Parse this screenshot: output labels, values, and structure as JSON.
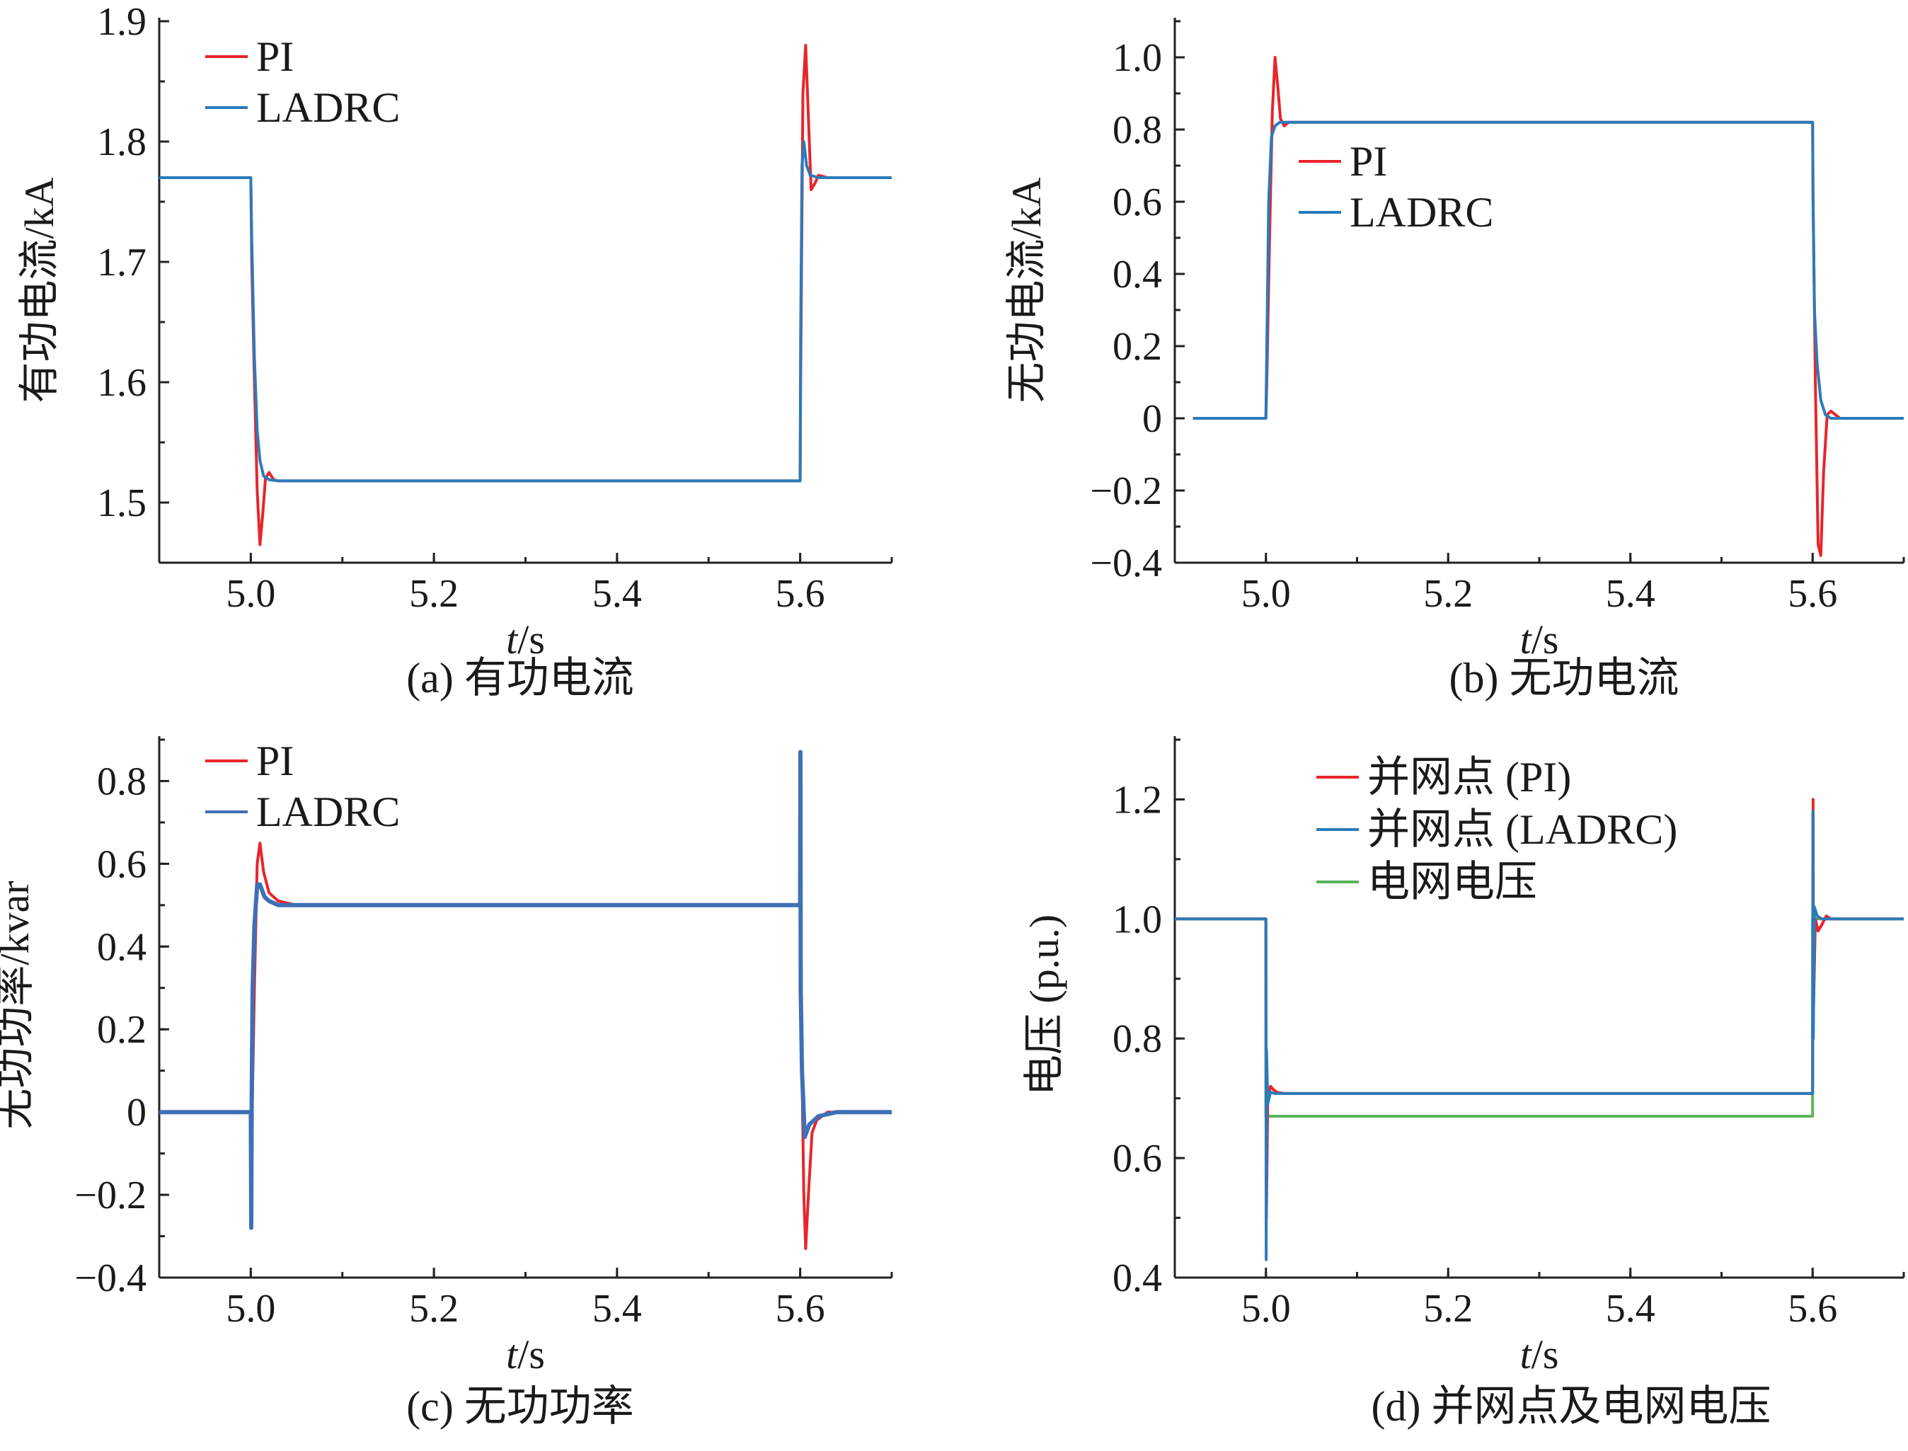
{
  "chart_data": [
    {
      "type": "line",
      "panel": "a",
      "caption": "(a) 有功电流",
      "ylabel": "有功电流/kA",
      "xlabel_t": "t",
      "xlabel_unit": "/s",
      "xlim": [
        4.9,
        5.7
      ],
      "ylim": [
        1.45,
        1.9
      ],
      "xticks": [
        5.0,
        5.2,
        5.4,
        5.6
      ],
      "xtick_labels": [
        "5.0",
        "5.2",
        "5.4",
        "5.6"
      ],
      "yticks": [
        1.5,
        1.6,
        1.7,
        1.8,
        1.9
      ],
      "ytick_labels": [
        "1.5",
        "1.6",
        "1.7",
        "1.8",
        "1.9"
      ],
      "legend_position": "top-left",
      "series": [
        {
          "name": "PI",
          "color": "#e8252b",
          "x": [
            4.9,
            5.0,
            5.001,
            5.004,
            5.007,
            5.01,
            5.013,
            5.016,
            5.02,
            5.025,
            5.03,
            5.6,
            5.6005,
            5.603,
            5.606,
            5.609,
            5.612,
            5.616,
            5.62,
            5.63,
            5.7
          ],
          "y": [
            1.77,
            1.77,
            1.7,
            1.6,
            1.51,
            1.465,
            1.49,
            1.52,
            1.525,
            1.519,
            1.518,
            1.518,
            1.6,
            1.84,
            1.88,
            1.82,
            1.76,
            1.765,
            1.772,
            1.77,
            1.77
          ]
        },
        {
          "name": "LADRC",
          "color": "#2b7bb9",
          "x": [
            4.9,
            5.0,
            5.001,
            5.004,
            5.007,
            5.01,
            5.014,
            5.02,
            5.03,
            5.6,
            5.6005,
            5.602,
            5.604,
            5.607,
            5.611,
            5.62,
            5.7
          ],
          "y": [
            1.77,
            1.77,
            1.72,
            1.62,
            1.56,
            1.535,
            1.522,
            1.519,
            1.518,
            1.518,
            1.64,
            1.78,
            1.8,
            1.78,
            1.772,
            1.77,
            1.77
          ]
        }
      ]
    },
    {
      "type": "line",
      "panel": "b",
      "caption": "(b) 无功电流",
      "ylabel": "无功电流/kA",
      "xlabel_t": "t",
      "xlabel_unit": "/s",
      "xlim": [
        4.9,
        5.7
      ],
      "ylim": [
        -0.4,
        1.1
      ],
      "xticks": [
        5.0,
        5.2,
        5.4,
        5.6
      ],
      "xtick_labels": [
        "5.0",
        "5.2",
        "5.4",
        "5.6"
      ],
      "yticks": [
        -0.4,
        -0.2,
        0,
        0.2,
        0.4,
        0.6,
        0.8,
        1.0
      ],
      "ytick_labels": [
        "−0.4",
        "−0.2",
        "0",
        "0.2",
        "0.4",
        "0.6",
        "0.8",
        "1.0"
      ],
      "legend_position": "upper-left",
      "series": [
        {
          "name": "PI",
          "color": "#e8252b",
          "x": [
            4.92,
            5.0,
            5.001,
            5.004,
            5.007,
            5.01,
            5.013,
            5.016,
            5.02,
            5.025,
            5.03,
            5.6,
            5.6005,
            5.603,
            5.606,
            5.609,
            5.612,
            5.616,
            5.62,
            5.63,
            5.7
          ],
          "y": [
            0,
            0,
            0.1,
            0.5,
            0.85,
            1.0,
            0.92,
            0.83,
            0.81,
            0.82,
            0.82,
            0.82,
            0.6,
            0.1,
            -0.35,
            -0.38,
            -0.15,
            0.01,
            0.02,
            0.0,
            0.0
          ]
        },
        {
          "name": "LADRC",
          "color": "#2b7bb9",
          "x": [
            4.92,
            5.0,
            5.001,
            5.003,
            5.006,
            5.01,
            5.015,
            5.02,
            5.6,
            5.6005,
            5.602,
            5.605,
            5.609,
            5.614,
            5.62,
            5.7
          ],
          "y": [
            0,
            0,
            0.2,
            0.6,
            0.78,
            0.81,
            0.82,
            0.82,
            0.82,
            0.6,
            0.3,
            0.15,
            0.05,
            0.01,
            0.0,
            0.0
          ]
        }
      ]
    },
    {
      "type": "line",
      "panel": "c",
      "caption": "(c) 无功功率",
      "ylabel": "无功功率/kvar",
      "xlabel_t": "t",
      "xlabel_unit": "/s",
      "xlim": [
        4.9,
        5.7
      ],
      "ylim": [
        -0.4,
        0.9
      ],
      "xticks": [
        5.0,
        5.2,
        5.4,
        5.6
      ],
      "xtick_labels": [
        "5.0",
        "5.2",
        "5.4",
        "5.6"
      ],
      "yticks": [
        -0.4,
        -0.2,
        0,
        0.2,
        0.4,
        0.6,
        0.8
      ],
      "ytick_labels": [
        "−0.4",
        "−0.2",
        "0",
        "0.2",
        "0.4",
        "0.6",
        "0.8"
      ],
      "legend_position": "top-left",
      "series": [
        {
          "name": "PI",
          "color": "#e8252b",
          "x": [
            4.9,
            5.0,
            5.001,
            5.004,
            5.007,
            5.01,
            5.014,
            5.02,
            5.03,
            5.05,
            5.08,
            5.6,
            5.6005,
            5.602,
            5.604,
            5.606,
            5.609,
            5.613,
            5.618,
            5.63,
            5.65,
            5.7
          ],
          "y": [
            0,
            0,
            -0.05,
            0.3,
            0.6,
            0.65,
            0.58,
            0.53,
            0.51,
            0.5,
            0.5,
            0.5,
            0.45,
            0.1,
            -0.2,
            -0.33,
            -0.2,
            -0.05,
            -0.02,
            0.0,
            0.0,
            0.0
          ]
        },
        {
          "name": "LADRC",
          "color": "#3f6fb5",
          "x": [
            4.9,
            5.0,
            5.0005,
            5.001,
            5.002,
            5.004,
            5.007,
            5.01,
            5.015,
            5.02,
            5.03,
            5.05,
            5.08,
            5.6,
            5.6003,
            5.6006,
            5.602,
            5.605,
            5.61,
            5.62,
            5.64,
            5.7
          ],
          "y": [
            0,
            0,
            -0.28,
            0.05,
            0.3,
            0.45,
            0.55,
            0.55,
            0.52,
            0.51,
            0.5,
            0.5,
            0.5,
            0.5,
            0.87,
            0.3,
            0.1,
            -0.06,
            -0.03,
            -0.01,
            0.0,
            0.0
          ]
        }
      ]
    },
    {
      "type": "line",
      "panel": "d",
      "caption": "(d) 并网点及电网电压",
      "ylabel": "电压 (p.u.)",
      "xlabel_t": "t",
      "xlabel_unit": "/s",
      "xlim": [
        4.9,
        5.7
      ],
      "ylim": [
        0.4,
        1.3
      ],
      "xticks": [
        5.0,
        5.2,
        5.4,
        5.6
      ],
      "xtick_labels": [
        "5.0",
        "5.2",
        "5.4",
        "5.6"
      ],
      "yticks": [
        0.4,
        0.6,
        0.8,
        1.0,
        1.2
      ],
      "ytick_labels": [
        "0.4",
        "0.6",
        "0.8",
        "1.0",
        "1.2"
      ],
      "legend_position": "top",
      "series": [
        {
          "name": "电网电压",
          "color": "#5bb35b",
          "x": [
            4.9,
            5.0,
            5.0,
            5.6,
            5.6,
            5.7
          ],
          "y": [
            1.0,
            1.0,
            0.67,
            0.67,
            1.0,
            1.0
          ]
        },
        {
          "name": "并网点 (PI)",
          "color": "#e8252b",
          "x": [
            4.9,
            5.0,
            5.0005,
            5.002,
            5.005,
            5.008,
            5.012,
            5.02,
            5.03,
            5.6,
            5.6005,
            5.601,
            5.603,
            5.606,
            5.61,
            5.615,
            5.62,
            5.7
          ],
          "y": [
            1.0,
            1.0,
            0.5,
            0.7,
            0.72,
            0.715,
            0.71,
            0.708,
            0.708,
            0.708,
            1.2,
            0.85,
            1.0,
            0.98,
            0.99,
            1.005,
            1.0,
            1.0
          ]
        },
        {
          "name": "并网点 (LADRC)",
          "color": "#2b7bb9",
          "x": [
            4.9,
            5.0,
            5.0003,
            5.0007,
            5.002,
            5.005,
            5.01,
            5.02,
            5.03,
            5.6,
            5.6003,
            5.6007,
            5.602,
            5.605,
            5.61,
            5.62,
            5.7
          ],
          "y": [
            1.0,
            1.0,
            0.43,
            0.78,
            0.69,
            0.71,
            0.708,
            0.708,
            0.708,
            0.708,
            1.18,
            0.8,
            1.02,
            1.005,
            1.0,
            1.0,
            1.0
          ]
        }
      ]
    }
  ]
}
